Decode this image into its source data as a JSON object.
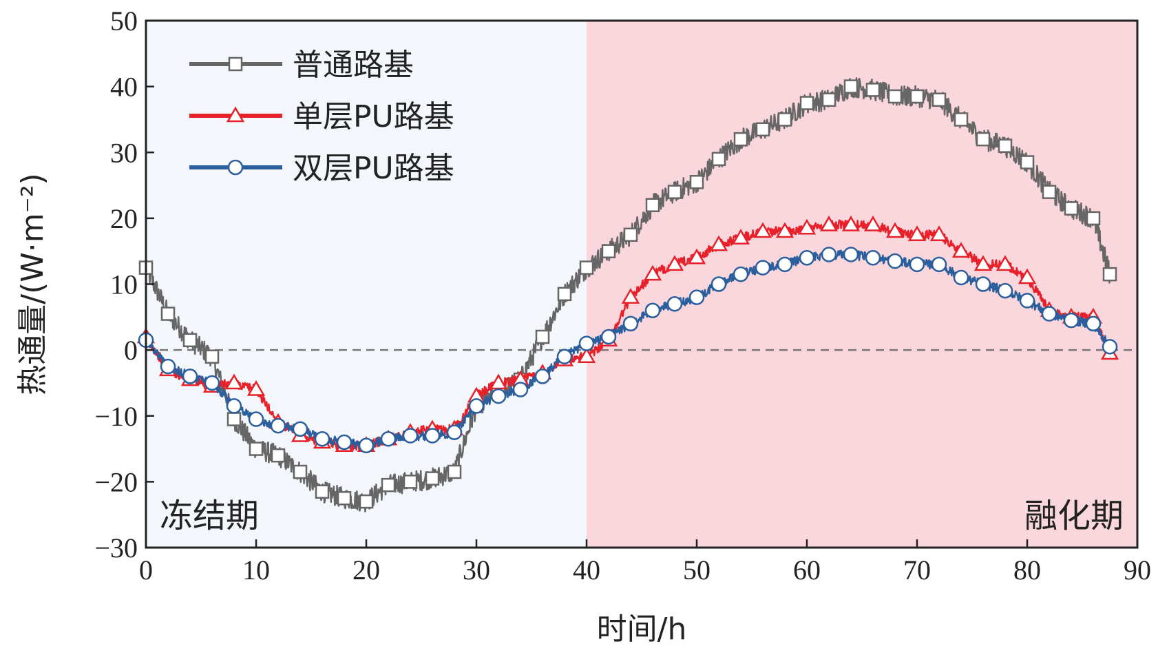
{
  "chart_data": {
    "type": "line",
    "xlabel": "时间/h",
    "ylabel": "热通量/(W·m⁻²)",
    "xlim": [
      0,
      90
    ],
    "ylim": [
      -30,
      50
    ],
    "xticks": [
      0,
      10,
      20,
      30,
      40,
      50,
      60,
      70,
      80,
      90
    ],
    "yticks": [
      -30,
      -20,
      -10,
      0,
      10,
      20,
      30,
      40,
      50
    ],
    "xtick_labels": [
      "0",
      "10",
      "20",
      "30",
      "40",
      "50",
      "60",
      "70",
      "80",
      "90"
    ],
    "ytick_labels": [
      "−30",
      "−20",
      "−10",
      "0",
      "10",
      "20",
      "30",
      "40",
      "50"
    ],
    "reference_line": {
      "y": 0,
      "style": "dashed"
    },
    "regions": [
      {
        "label": "冻结期",
        "x": [
          0,
          40
        ],
        "color": "#f3f7fb"
      },
      {
        "label": "融化期",
        "x": [
          40,
          90
        ],
        "color": "#f9d7dd"
      }
    ],
    "legend_position": "top-left",
    "series": [
      {
        "name": "普通路基",
        "color": "#666666",
        "marker": "square",
        "x": [
          0,
          2,
          4,
          6,
          8,
          10,
          12,
          14,
          16,
          18,
          20,
          22,
          24,
          26,
          28,
          30,
          32,
          34,
          36,
          38,
          40,
          42,
          44,
          46,
          48,
          50,
          52,
          54,
          56,
          58,
          60,
          62,
          64,
          66,
          68,
          70,
          72,
          74,
          76,
          78,
          80,
          82,
          84,
          86,
          87.5
        ],
        "y": [
          12.5,
          5.5,
          1.5,
          -1,
          -10.5,
          -15,
          -16,
          -18.5,
          -21.5,
          -22.5,
          -23,
          -20.5,
          -20,
          -19.5,
          -18.5,
          -8.5,
          -6.5,
          -4.5,
          2,
          8.5,
          12.5,
          15,
          17.5,
          22,
          24,
          25.5,
          29,
          32,
          33.5,
          35,
          37.5,
          38,
          40,
          39.5,
          38.5,
          38.5,
          38,
          35,
          32,
          31,
          28.5,
          24,
          21.5,
          20,
          11.5
        ]
      },
      {
        "name": "单层PU路基",
        "color": "#e8202a",
        "marker": "triangle",
        "x": [
          0,
          2,
          4,
          6,
          8,
          10,
          12,
          14,
          16,
          18,
          20,
          22,
          24,
          26,
          28,
          30,
          32,
          34,
          36,
          38,
          40,
          42,
          44,
          46,
          48,
          50,
          52,
          54,
          56,
          58,
          60,
          62,
          64,
          66,
          68,
          70,
          72,
          74,
          76,
          78,
          80,
          82,
          84,
          86,
          87.5
        ],
        "y": [
          2,
          -3,
          -4.5,
          -5.5,
          -5,
          -6,
          -11,
          -13,
          -14,
          -14.5,
          -14.5,
          -13.5,
          -12.5,
          -12,
          -12,
          -7,
          -5,
          -4.5,
          -3.5,
          -1.5,
          -1,
          1.5,
          8,
          11.5,
          13,
          14,
          16,
          17,
          18,
          18,
          18.5,
          19,
          19,
          19,
          18,
          17.5,
          17.5,
          15,
          13,
          13,
          11,
          6,
          5,
          5,
          -0.5
        ]
      },
      {
        "name": "双层PU路基",
        "color": "#2a5e9c",
        "marker": "circle",
        "x": [
          0,
          2,
          4,
          6,
          8,
          10,
          12,
          14,
          16,
          18,
          20,
          22,
          24,
          26,
          28,
          30,
          32,
          34,
          36,
          38,
          40,
          42,
          44,
          46,
          48,
          50,
          52,
          54,
          56,
          58,
          60,
          62,
          64,
          66,
          68,
          70,
          72,
          74,
          76,
          78,
          80,
          82,
          84,
          86,
          87.5
        ],
        "y": [
          1.5,
          -2.5,
          -4,
          -5,
          -8.5,
          -10.5,
          -11.5,
          -12,
          -13.5,
          -14,
          -14.5,
          -13.5,
          -13,
          -13,
          -12.5,
          -8.5,
          -7,
          -6,
          -4,
          -1,
          1,
          2,
          4,
          6,
          7,
          8,
          10,
          11.5,
          12.5,
          13,
          14,
          14.5,
          14.5,
          14,
          13.5,
          13,
          13,
          11,
          10,
          9,
          7.5,
          5.5,
          4.5,
          4,
          0.5
        ]
      }
    ]
  }
}
